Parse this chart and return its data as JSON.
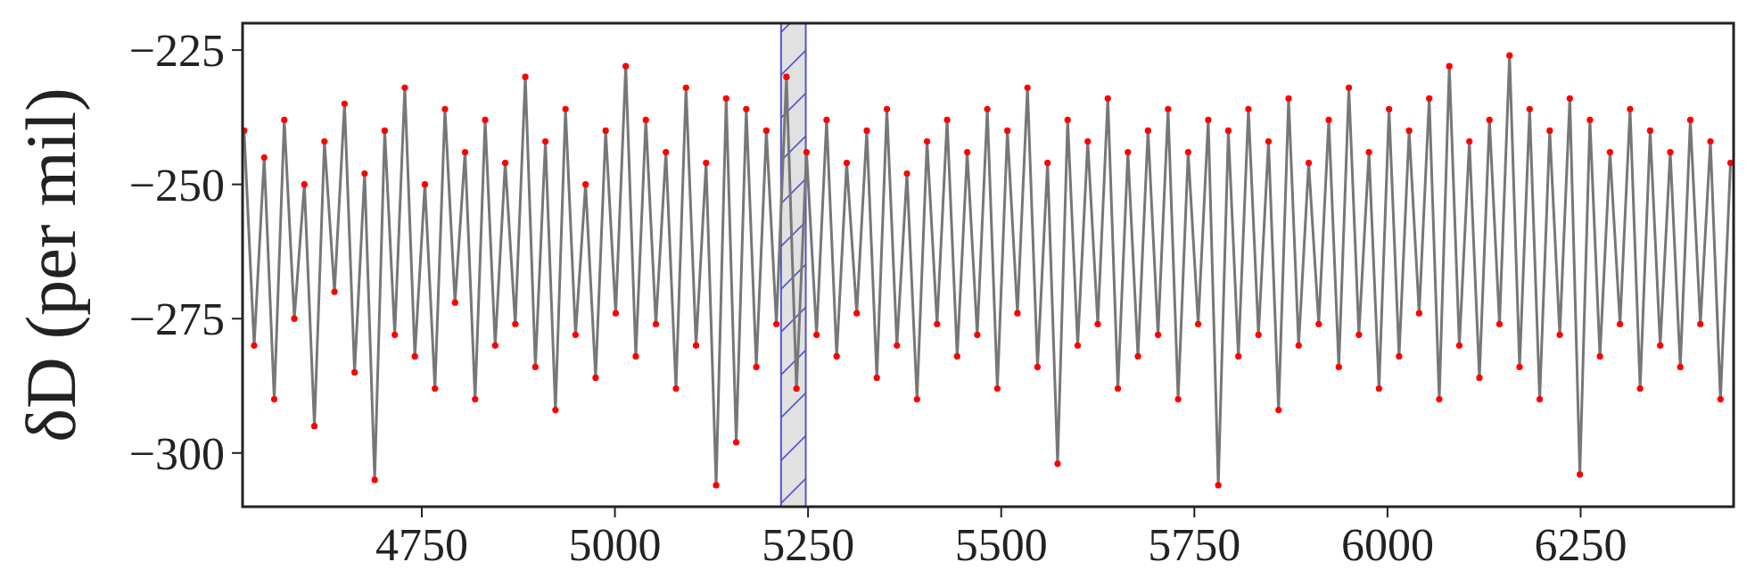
{
  "chart_data": {
    "type": "line",
    "ylabel": "δD (per mil)",
    "x": [
      4520,
      4533,
      4546,
      4559,
      4572,
      4585,
      4598,
      4611,
      4624,
      4637,
      4650,
      4663,
      4676,
      4689,
      4702,
      4715,
      4728,
      4741,
      4754,
      4767,
      4780,
      4793,
      4806,
      4819,
      4832,
      4845,
      4858,
      4871,
      4884,
      4897,
      4910,
      4923,
      4936,
      4949,
      4962,
      4975,
      4988,
      5001,
      5014,
      5027,
      5040,
      5053,
      5066,
      5079,
      5092,
      5105,
      5118,
      5131,
      5144,
      5157,
      5170,
      5183,
      5196,
      5209,
      5222,
      5235,
      5248,
      5261,
      5274,
      5287,
      5300,
      5313,
      5326,
      5339,
      5352,
      5365,
      5378,
      5391,
      5404,
      5417,
      5430,
      5443,
      5456,
      5469,
      5482,
      5495,
      5508,
      5521,
      5534,
      5547,
      5560,
      5573,
      5586,
      5599,
      5612,
      5625,
      5638,
      5651,
      5664,
      5677,
      5690,
      5703,
      5716,
      5729,
      5742,
      5755,
      5768,
      5781,
      5794,
      5807,
      5820,
      5833,
      5846,
      5859,
      5872,
      5885,
      5898,
      5911,
      5924,
      5937,
      5950,
      5963,
      5976,
      5989,
      6002,
      6015,
      6028,
      6041,
      6054,
      6067,
      6080,
      6093,
      6106,
      6119,
      6132,
      6145,
      6158,
      6171,
      6184,
      6197,
      6210,
      6223,
      6236,
      6249,
      6262,
      6275,
      6288,
      6301,
      6314,
      6327,
      6340,
      6353,
      6366,
      6379,
      6392,
      6405,
      6418,
      6431,
      6444
    ],
    "series": [
      {
        "color": "#777777",
        "marker": "none",
        "line_style": "solid",
        "values": [
          -240,
          -280,
          -245,
          -290,
          -238,
          -275,
          -250,
          -295,
          -242,
          -270,
          -235,
          -285,
          -248,
          -305,
          -240,
          -278,
          -232,
          -282,
          -250,
          -288,
          -236,
          -272,
          -244,
          -290,
          -238,
          -280,
          -246,
          -276,
          -230,
          -284,
          -242,
          -292,
          -236,
          -278,
          -250,
          -286,
          -240,
          -274,
          -228,
          -282,
          -238,
          -276,
          -244,
          -288,
          -232,
          -280,
          -246,
          -306,
          -234,
          -298,
          -236,
          -284,
          -240,
          -276,
          -230,
          -288,
          -244,
          -278,
          -238,
          -282,
          -246,
          -274,
          -240,
          -286,
          -236,
          -280,
          -248,
          -290,
          -242,
          -276,
          -238,
          -282,
          -244,
          -278,
          -236,
          -288,
          -240,
          -274,
          -232,
          -284,
          -246,
          -302,
          -238,
          -280,
          -242,
          -276,
          -234,
          -288,
          -244,
          -282,
          -240,
          -278,
          -236,
          -290,
          -244,
          -276,
          -238,
          -306,
          -240,
          -282,
          -236,
          -278,
          -242,
          -292,
          -234,
          -280,
          -246,
          -276,
          -238,
          -284,
          -232,
          -278,
          -244,
          -288,
          -236,
          -282,
          -240,
          -274,
          -234,
          -290,
          -228,
          -280,
          -242,
          -286,
          -238,
          -276,
          -226,
          -284,
          -236,
          -290,
          -240,
          -278,
          -234,
          -304,
          -238,
          -282,
          -244,
          -276,
          -236,
          -288,
          -240,
          -280,
          -244,
          -284,
          -238,
          -276,
          -242,
          -290,
          -246
        ]
      },
      {
        "type": "scatter",
        "color": "#ff0000",
        "marker": "circle",
        "values": [
          -240,
          -280,
          -245,
          -290,
          -238,
          -275,
          -250,
          -295,
          -242,
          -270,
          -235,
          -285,
          -248,
          -305,
          -240,
          -278,
          -232,
          -282,
          -250,
          -288,
          -236,
          -272,
          -244,
          -290,
          -238,
          -280,
          -246,
          -276,
          -230,
          -284,
          -242,
          -292,
          -236,
          -278,
          -250,
          -286,
          -240,
          -274,
          -228,
          -282,
          -238,
          -276,
          -244,
          -288,
          -232,
          -280,
          -246,
          -306,
          -234,
          -298,
          -236,
          -284,
          -240,
          -276,
          -230,
          -288,
          -244,
          -278,
          -238,
          -282,
          -246,
          -274,
          -240,
          -286,
          -236,
          -280,
          -248,
          -290,
          -242,
          -276,
          -238,
          -282,
          -244,
          -278,
          -236,
          -288,
          -240,
          -274,
          -232,
          -284,
          -246,
          -302,
          -238,
          -280,
          -242,
          -276,
          -234,
          -288,
          -244,
          -282,
          -240,
          -278,
          -236,
          -290,
          -244,
          -276,
          -238,
          -306,
          -240,
          -282,
          -236,
          -278,
          -242,
          -292,
          -234,
          -280,
          -246,
          -276,
          -238,
          -284,
          -232,
          -278,
          -244,
          -288,
          -236,
          -282,
          -240,
          -274,
          -234,
          -290,
          -228,
          -280,
          -242,
          -286,
          -238,
          -276,
          -226,
          -284,
          -236,
          -290,
          -240,
          -278,
          -234,
          -304,
          -238,
          -282,
          -244,
          -276,
          -236,
          -288,
          -240,
          -280,
          -244,
          -284,
          -238,
          -276,
          -242,
          -290,
          -246
        ]
      }
    ],
    "xlim": [
      4518,
      6448
    ],
    "xticks": [
      4750,
      5000,
      5250,
      5500,
      5750,
      6000,
      6250
    ],
    "ylim": [
      -310,
      -220
    ],
    "yticks": [
      {
        "value": -225,
        "label": "−225"
      },
      {
        "value": -250,
        "label": "−250"
      },
      {
        "value": -275,
        "label": "−275"
      },
      {
        "value": -300,
        "label": "−300"
      }
    ],
    "bands": [
      {
        "axis": "x",
        "from": 5215,
        "to": 5247,
        "color": "#dcdcdc"
      }
    ],
    "grid": false
  }
}
